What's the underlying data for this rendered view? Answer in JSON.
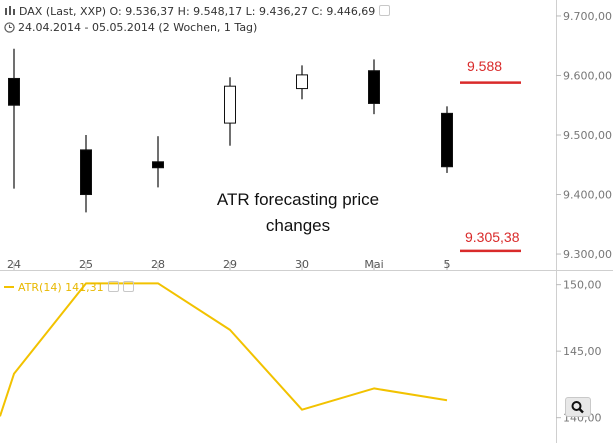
{
  "header": {
    "line1": "DAX (Last, XXP)  O: 9.536,37  H: 9.548,17  L: 9.436,27  C: 9.446,69",
    "line2": "24.04.2014 - 05.05.2014 (2 Wochen, 1 Tag)",
    "atr_label": "ATR(14)  141,31"
  },
  "annotation": {
    "line1": "ATR forecasting price",
    "line2": "changes"
  },
  "forecast": {
    "upper_label": "9.588",
    "lower_label": "9.305,38",
    "color": "#d92a2a"
  },
  "icons": [
    "chart-type-icon",
    "clock-icon",
    "settings-icon",
    "zoom-icon"
  ],
  "chart_data": [
    {
      "type": "candlestick",
      "categories": [
        "24",
        "25",
        "28",
        "29",
        "30",
        "Mai",
        "5"
      ],
      "ohlc": [
        {
          "open": 9595,
          "high": 9645,
          "low": 9410,
          "close": 9550
        },
        {
          "open": 9475,
          "high": 9500,
          "low": 9370,
          "close": 9400
        },
        {
          "open": 9455,
          "high": 9498,
          "low": 9412,
          "close": 9445
        },
        {
          "open": 9520,
          "high": 9597,
          "low": 9482,
          "close": 9582
        },
        {
          "open": 9578,
          "high": 9617,
          "low": 9560,
          "close": 9601
        },
        {
          "open": 9608,
          "high": 9627,
          "low": 9535,
          "close": 9553
        },
        {
          "open": 9536.37,
          "high": 9548.17,
          "low": 9436.27,
          "close": 9446.69
        }
      ],
      "bullish_color": "#ffffff",
      "bearish_color": "#000000",
      "yticks": [
        9300,
        9400,
        9500,
        9600,
        9700
      ],
      "ytick_labels": [
        "9.300,00",
        "9.400,00",
        "9.500,00",
        "9.600,00",
        "9.700,00"
      ],
      "ylim": [
        9290,
        9710
      ],
      "forecast_levels": [
        9588,
        9305.38
      ],
      "grid": false
    },
    {
      "type": "line",
      "series": [
        {
          "name": "ATR(14)",
          "color": "#f2c200",
          "x": [
            "24",
            "25",
            "28",
            "29",
            "30",
            "Mai",
            "5"
          ],
          "values": [
            143.3,
            150.1,
            150.1,
            146.6,
            140.6,
            142.2,
            141.31
          ]
        }
      ],
      "yticks": [
        140,
        145,
        150
      ],
      "ytick_labels": [
        "140,00",
        "145,00",
        "150,00"
      ],
      "ylim": [
        139.6,
        150.2
      ],
      "grid": false
    }
  ]
}
